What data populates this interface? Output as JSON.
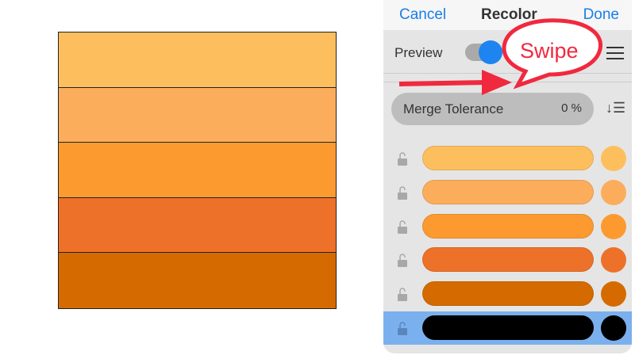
{
  "canvas": {
    "stripes": [
      "#fdbf5e",
      "#fcad5c",
      "#fc9a2f",
      "#ee7129",
      "#d56b00"
    ]
  },
  "header": {
    "cancel": "Cancel",
    "title": "Recolor",
    "done": "Done"
  },
  "preview": {
    "label": "Preview",
    "on": true
  },
  "merge": {
    "label": "Merge Tolerance",
    "value": "0 %"
  },
  "annotation": {
    "text": "Swipe",
    "color": "#f0293f"
  },
  "colors": [
    {
      "color": "#fdbf5e",
      "locked": false,
      "selected": false
    },
    {
      "color": "#fcad5c",
      "locked": false,
      "selected": false
    },
    {
      "color": "#fc9a2f",
      "locked": false,
      "selected": false
    },
    {
      "color": "#ee7129",
      "locked": false,
      "selected": false
    },
    {
      "color": "#d56b00",
      "locked": false,
      "selected": false
    },
    {
      "color": "#000000",
      "locked": false,
      "selected": true
    }
  ]
}
